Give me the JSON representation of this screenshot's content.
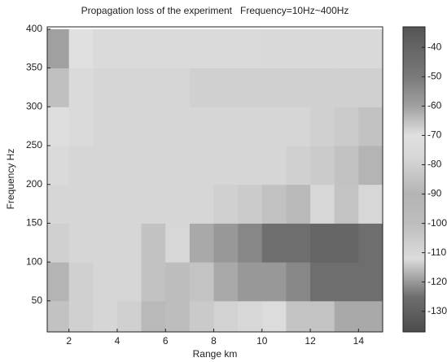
{
  "chart_data": {
    "type": "heatmap",
    "title": "Propagation loss of the experiment   Frequency=10Hz~400Hz",
    "x_label": "Range km",
    "y_label": "Frequency Hz",
    "xlim": [
      1.1,
      15
    ],
    "xticks": [
      2,
      4,
      6,
      8,
      10,
      12,
      14
    ],
    "ylim": [
      10,
      403
    ],
    "yticks": [
      50,
      100,
      150,
      200,
      250,
      300,
      350,
      400
    ],
    "x_edges": [
      1,
      2,
      3,
      4,
      5,
      6,
      7,
      8,
      9,
      10,
      11,
      12,
      13,
      14,
      15
    ],
    "y_edges": [
      10,
      50,
      100,
      150,
      200,
      250,
      300,
      350,
      400
    ],
    "z": [
      [
        -85,
        -80,
        -78,
        -80,
        -95,
        -100,
        -105,
        -108,
        -110,
        -112,
        -115,
        -115,
        -118,
        -118
      ],
      [
        -90,
        -80,
        -78,
        -78,
        -85,
        -100,
        -115,
        -118,
        -120,
        -120,
        -122,
        -125,
        -125,
        -125
      ],
      [
        -80,
        -78,
        -78,
        -78,
        -85,
        -110,
        -118,
        -120,
        -122,
        -125,
        -125,
        -128,
        -128,
        -125
      ],
      [
        -78,
        -78,
        -78,
        -78,
        -78,
        -78,
        -78,
        -80,
        -82,
        -85,
        -95,
        -110,
        -115,
        -110
      ],
      [
        -75,
        -78,
        -78,
        -78,
        -78,
        -78,
        -78,
        -78,
        -78,
        -78,
        -80,
        -82,
        -85,
        -90
      ],
      [
        -72,
        -75,
        -78,
        -78,
        -78,
        -78,
        -78,
        -78,
        -78,
        -78,
        -78,
        -80,
        -82,
        -85
      ],
      [
        -65,
        -75,
        -78,
        -78,
        -78,
        -78,
        -80,
        -80,
        -80,
        -80,
        -80,
        -80,
        -80,
        -80
      ],
      [
        -60,
        -70,
        -75,
        -75,
        -75,
        -75,
        -75,
        -75,
        -75,
        -76,
        -76,
        -76,
        -76,
        -76
      ]
    ],
    "clim": [
      -137,
      -33
    ],
    "cticks": [
      -40,
      -50,
      -60,
      -70,
      -80,
      -90,
      -100,
      -110,
      -120,
      -130
    ],
    "colorscale": [
      [
        -137,
        "#4d4d4d"
      ],
      [
        -125,
        "#6e6e6e"
      ],
      [
        -112,
        "#dcdcdc"
      ],
      [
        -100,
        "#bdbdbd"
      ],
      [
        -90,
        "#b4b4b4"
      ],
      [
        -78,
        "#d6d6d6"
      ],
      [
        -70,
        "#e0e0e0"
      ],
      [
        -60,
        "#a0a0a0"
      ],
      [
        -50,
        "#7a7a7a"
      ],
      [
        -33,
        "#555555"
      ]
    ]
  }
}
